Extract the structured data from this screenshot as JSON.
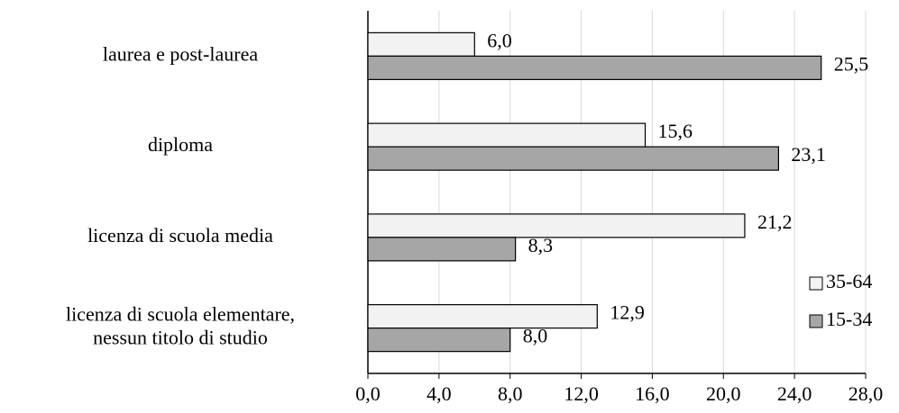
{
  "chart_data": {
    "type": "hbar",
    "categories": [
      "laurea e post-laurea",
      "diploma",
      "licenza di scuola media",
      "licenza di scuola elementare,\nnessun titolo di studio"
    ],
    "series": [
      {
        "name": "35-64",
        "color": "#f2f2f2",
        "values": [
          6.0,
          15.6,
          21.2,
          12.9
        ],
        "value_labels": [
          "6,0",
          "15,6",
          "21,2",
          "12,9"
        ]
      },
      {
        "name": "15-34",
        "color": "#a6a6a6",
        "values": [
          25.5,
          23.1,
          8.3,
          8.0
        ],
        "value_labels": [
          "25,5",
          "23,1",
          "8,3",
          "8,0"
        ]
      }
    ],
    "xlim": [
      0,
      28
    ],
    "xticks": [
      {
        "value": 0,
        "label": "0,0"
      },
      {
        "value": 4,
        "label": "4,0"
      },
      {
        "value": 8,
        "label": "8,0"
      },
      {
        "value": 12,
        "label": "12,0"
      },
      {
        "value": 16,
        "label": "16,0"
      },
      {
        "value": 20,
        "label": "20,0"
      },
      {
        "value": 24,
        "label": "24,0"
      },
      {
        "value": 28,
        "label": "28,0"
      }
    ],
    "grid": true,
    "legend": "right"
  }
}
